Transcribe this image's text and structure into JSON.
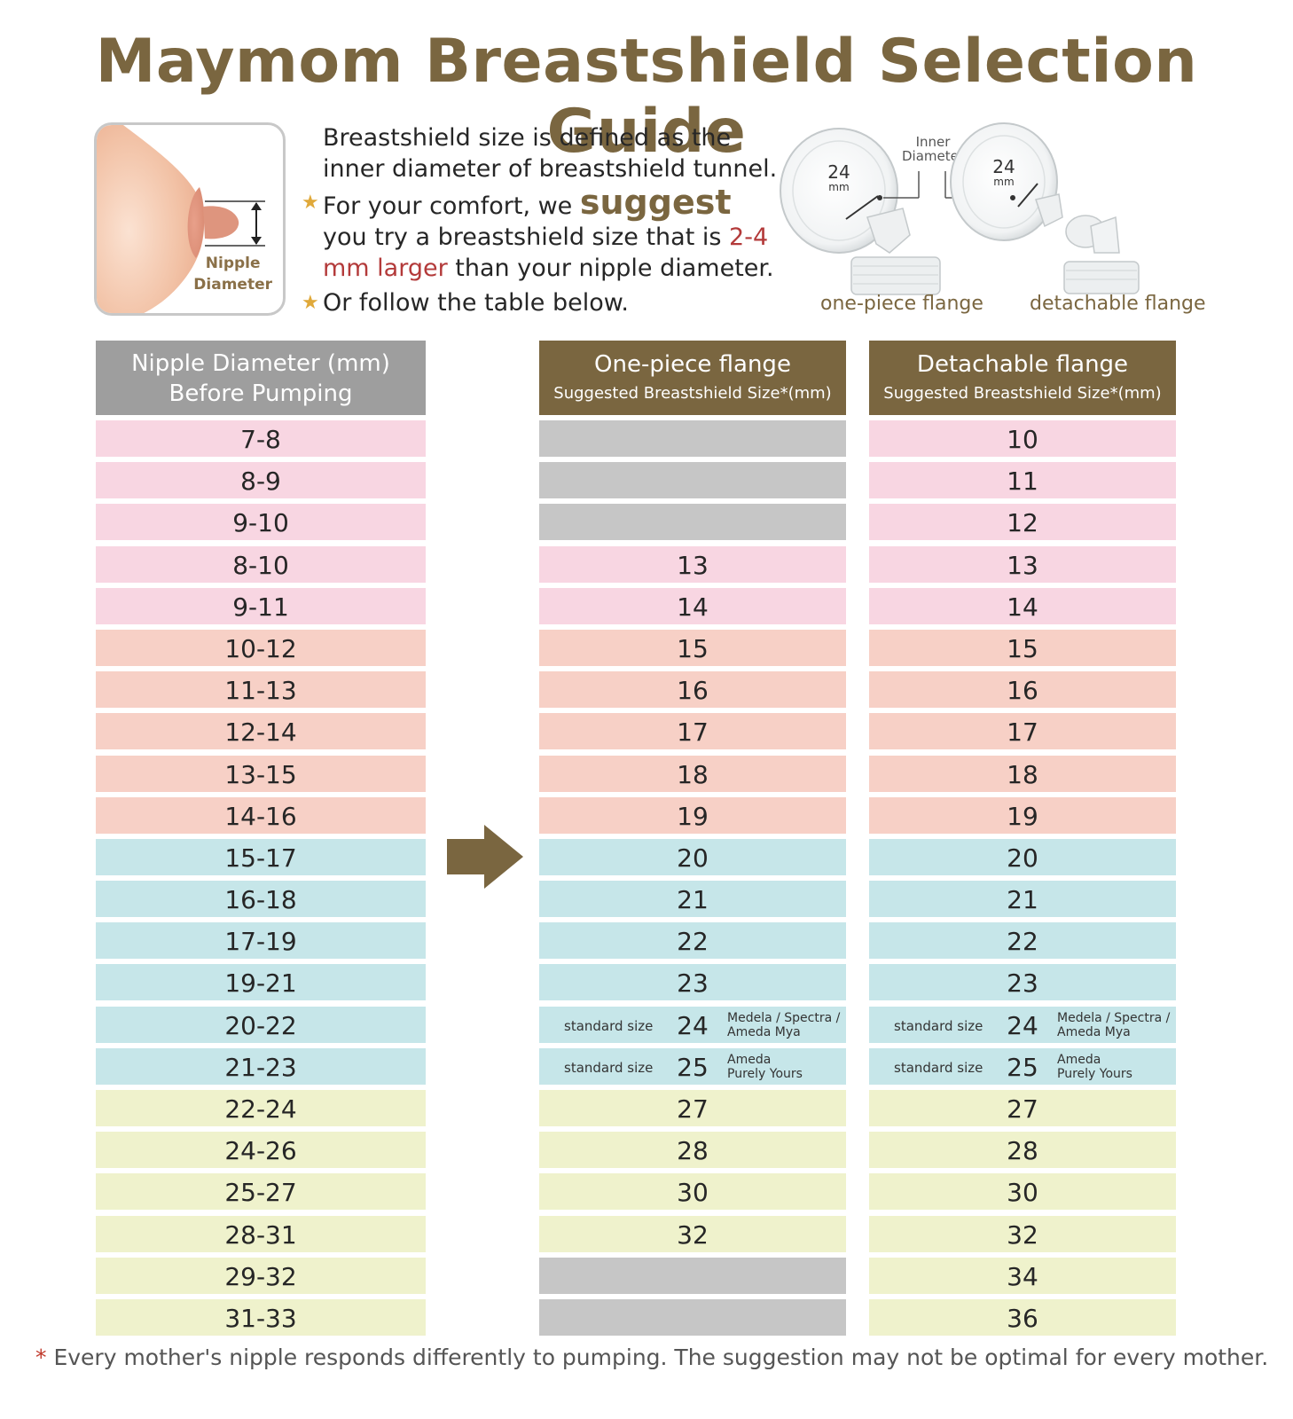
{
  "title": "Maymom Breastshield Selection Guide",
  "illustration": {
    "label_line1": "Nipple",
    "label_line2": "Diameter"
  },
  "intro": {
    "line1": "Breastshield size is defined as the inner diameter of breastshield tunnel.",
    "bullet1_a": "For your comfort, we ",
    "bullet1_b": "suggest",
    "bullet1_c": " you try a breastshield size that is ",
    "bullet1_d": "2-4 mm larger",
    "bullet1_e": " than your nipple diameter.",
    "bullet2": "Or follow the table below."
  },
  "diagram": {
    "inner_diameter_1": "Inner",
    "inner_diameter_2": "Diameter",
    "size_value": "24",
    "size_unit": "mm",
    "caption_one_piece": "one-piece flange",
    "caption_detachable": "detachable flange"
  },
  "table": {
    "nipple_header_1": "Nipple Diameter (mm)",
    "nipple_header_2": "Before Pumping",
    "one_piece_header": "One-piece flange",
    "one_piece_sub": "Suggested Breastshield Size*(mm)",
    "detachable_header": "Detachable flange",
    "detachable_sub": "Suggested Breastshield Size*(mm)",
    "rows": [
      {
        "nipple": "7-8",
        "one": "",
        "det": "10",
        "color": "pink",
        "one_color": "grey"
      },
      {
        "nipple": "8-9",
        "one": "",
        "det": "11",
        "color": "pink",
        "one_color": "grey"
      },
      {
        "nipple": "9-10",
        "one": "",
        "det": "12",
        "color": "pink",
        "one_color": "grey"
      },
      {
        "nipple": "8-10",
        "one": "13",
        "det": "13",
        "color": "pink",
        "one_color": "pink"
      },
      {
        "nipple": "9-11",
        "one": "14",
        "det": "14",
        "color": "pink",
        "one_color": "pink"
      },
      {
        "nipple": "10-12",
        "one": "15",
        "det": "15",
        "color": "salmon",
        "one_color": "salmon"
      },
      {
        "nipple": "11-13",
        "one": "16",
        "det": "16",
        "color": "salmon",
        "one_color": "salmon"
      },
      {
        "nipple": "12-14",
        "one": "17",
        "det": "17",
        "color": "salmon",
        "one_color": "salmon"
      },
      {
        "nipple": "13-15",
        "one": "18",
        "det": "18",
        "color": "salmon",
        "one_color": "salmon"
      },
      {
        "nipple": "14-16",
        "one": "19",
        "det": "19",
        "color": "salmon",
        "one_color": "salmon"
      },
      {
        "nipple": "15-17",
        "one": "20",
        "det": "20",
        "color": "cyan",
        "one_color": "cyan"
      },
      {
        "nipple": "16-18",
        "one": "21",
        "det": "21",
        "color": "cyan",
        "one_color": "cyan"
      },
      {
        "nipple": "17-19",
        "one": "22",
        "det": "22",
        "color": "cyan",
        "one_color": "cyan"
      },
      {
        "nipple": "19-21",
        "one": "23",
        "det": "23",
        "color": "cyan",
        "one_color": "cyan"
      },
      {
        "nipple": "20-22",
        "one": "24",
        "det": "24",
        "color": "cyan",
        "one_color": "cyan",
        "std": "standard size",
        "brand1": "Medela / Spectra /",
        "brand2": "Ameda Mya"
      },
      {
        "nipple": "21-23",
        "one": "25",
        "det": "25",
        "color": "cyan",
        "one_color": "cyan",
        "std": "standard size",
        "brand1": "Ameda",
        "brand2": "Purely Yours"
      },
      {
        "nipple": "22-24",
        "one": "27",
        "det": "27",
        "color": "yellow",
        "one_color": "yellow"
      },
      {
        "nipple": "24-26",
        "one": "28",
        "det": "28",
        "color": "yellow",
        "one_color": "yellow"
      },
      {
        "nipple": "25-27",
        "one": "30",
        "det": "30",
        "color": "yellow",
        "one_color": "yellow"
      },
      {
        "nipple": "28-31",
        "one": "32",
        "det": "32",
        "color": "yellow",
        "one_color": "yellow"
      },
      {
        "nipple": "29-32",
        "one": "",
        "det": "34",
        "color": "yellow",
        "one_color": "grey"
      },
      {
        "nipple": "31-33",
        "one": "",
        "det": "36",
        "color": "yellow",
        "one_color": "grey"
      }
    ]
  },
  "footnote": {
    "asterisk": "*",
    "text": " Every mother's nipple responds differently to pumping. The suggestion may not be optimal for every mother."
  },
  "colors": {
    "brown": "#7a6640",
    "red": "#b33a3a",
    "star": "#e0a93a"
  }
}
